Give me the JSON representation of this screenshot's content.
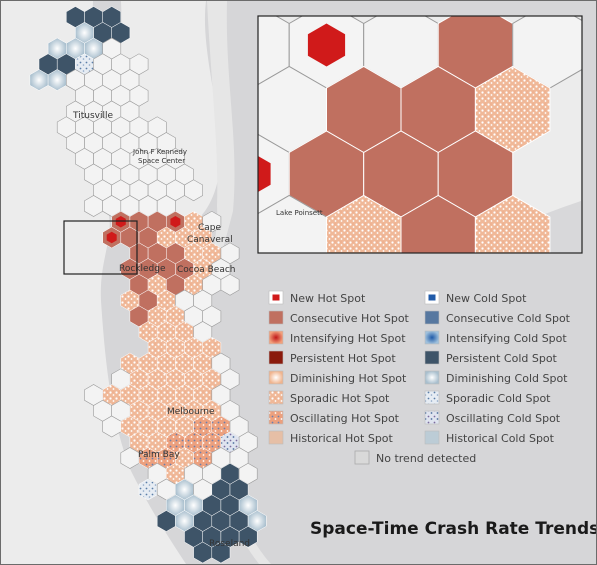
{
  "title": "Space-Time Crash Rate Trends",
  "colors": {
    "land": "#ececec",
    "water": "#d6d6d8",
    "hex_empty": "#f4f4f4",
    "hex_stroke": "#9a9a9a",
    "consecutive_hot": "#c07060",
    "new_hot": "#d01a1a",
    "sporadic_hot": "#f3c8ae",
    "persistent_cold": "#3e5468",
    "diminishing_cold": "#c2d2dc",
    "sporadic_cold": "#9fb4c8",
    "oscillating_cold": "#9aa6c4"
  },
  "places": {
    "titusville": "Titusville",
    "kennedy_line1": "John F Kennedy",
    "kennedy_line2": "Space Center",
    "cape_line1": "Cape",
    "cape_line2": "Canaveral",
    "rockledge": "Rockledge",
    "cocoa_beach": "Cocoa Beach",
    "melbourne": "Melbourne",
    "palm_bay": "Palm Bay",
    "roseland": "Roseland",
    "lake": "Lake Poinsett"
  },
  "legend": {
    "hot": [
      {
        "label": "New Hot Spot",
        "icon": "new-hot-spot-swatch"
      },
      {
        "label": "Consecutive Hot Spot",
        "icon": "consecutive-hot-spot-swatch"
      },
      {
        "label": "Intensifying Hot Spot",
        "icon": "intensifying-hot-spot-swatch"
      },
      {
        "label": "Persistent Hot Spot",
        "icon": "persistent-hot-spot-swatch"
      },
      {
        "label": "Diminishing Hot Spot",
        "icon": "diminishing-hot-spot-swatch"
      },
      {
        "label": "Sporadic Hot Spot",
        "icon": "sporadic-hot-spot-swatch"
      },
      {
        "label": "Oscillating Hot Spot",
        "icon": "oscillating-hot-spot-swatch"
      },
      {
        "label": "Historical Hot Spot",
        "icon": "historical-hot-spot-swatch"
      }
    ],
    "cold": [
      {
        "label": "New Cold Spot",
        "icon": "new-cold-spot-swatch"
      },
      {
        "label": "Consecutive Cold Spot",
        "icon": "consecutive-cold-spot-swatch"
      },
      {
        "label": "Intensifying Cold Spot",
        "icon": "intensifying-cold-spot-swatch"
      },
      {
        "label": "Persistent Cold Spot",
        "icon": "persistent-cold-spot-swatch"
      },
      {
        "label": "Diminishing Cold Spot",
        "icon": "diminishing-cold-spot-swatch"
      },
      {
        "label": "Sporadic Cold Spot",
        "icon": "sporadic-cold-spot-swatch"
      },
      {
        "label": "Oscillating Cold Spot",
        "icon": "oscillating-cold-spot-swatch"
      },
      {
        "label": "Historical Cold Spot",
        "icon": "historical-cold-spot-swatch"
      }
    ],
    "no_trend": "No trend detected"
  }
}
